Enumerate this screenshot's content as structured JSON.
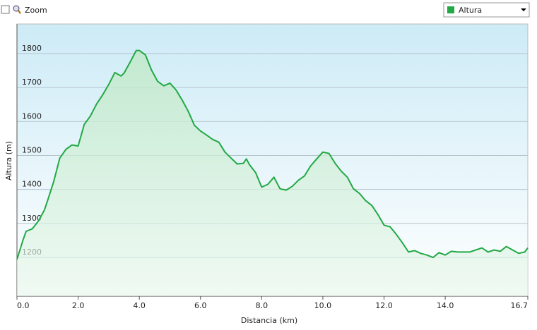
{
  "ui": {
    "zoom_label": "Zoom"
  },
  "chart_data": {
    "type": "area",
    "x_label": "Distancia  (km)",
    "y_label": "Altura (m)",
    "x": [
      0.0,
      0.2,
      0.3,
      0.5,
      0.7,
      0.9,
      1.0,
      1.2,
      1.4,
      1.6,
      1.8,
      2.0,
      2.2,
      2.4,
      2.6,
      2.8,
      3.0,
      3.2,
      3.4,
      3.5,
      3.7,
      3.9,
      4.0,
      4.2,
      4.4,
      4.6,
      4.8,
      5.0,
      5.2,
      5.4,
      5.6,
      5.8,
      6.0,
      6.2,
      6.4,
      6.6,
      6.8,
      7.0,
      7.2,
      7.4,
      7.5,
      7.6,
      7.8,
      8.0,
      8.2,
      8.4,
      8.6,
      8.8,
      9.0,
      9.2,
      9.4,
      9.6,
      9.8,
      10.0,
      10.2,
      10.4,
      10.6,
      10.8,
      11.0,
      11.2,
      11.4,
      11.6,
      11.8,
      12.0,
      12.2,
      12.4,
      12.6,
      12.8,
      13.0,
      13.2,
      13.4,
      13.6,
      13.8,
      14.0,
      14.2,
      14.4,
      14.6,
      14.8,
      15.0,
      15.2,
      15.4,
      15.6,
      15.8,
      16.0,
      16.2,
      16.4,
      16.6,
      16.7
    ],
    "series": [
      {
        "name": "Altura",
        "color": "#22a845",
        "values": [
          1194,
          1252,
          1277,
          1284,
          1307,
          1340,
          1367,
          1423,
          1492,
          1518,
          1531,
          1528,
          1591,
          1616,
          1651,
          1678,
          1709,
          1744,
          1734,
          1742,
          1775,
          1809,
          1809,
          1796,
          1751,
          1718,
          1705,
          1713,
          1693,
          1663,
          1630,
          1589,
          1572,
          1560,
          1547,
          1539,
          1510,
          1492,
          1475,
          1477,
          1490,
          1473,
          1450,
          1407,
          1415,
          1436,
          1402,
          1398,
          1409,
          1427,
          1440,
          1469,
          1490,
          1510,
          1506,
          1477,
          1454,
          1436,
          1402,
          1388,
          1367,
          1353,
          1326,
          1295,
          1290,
          1268,
          1243,
          1216,
          1220,
          1212,
          1207,
          1200,
          1214,
          1207,
          1218,
          1216,
          1216,
          1216,
          1222,
          1228,
          1216,
          1222,
          1218,
          1232,
          1222,
          1212,
          1216,
          1228
        ]
      }
    ],
    "xlim": [
      0,
      16.7
    ],
    "ylim": [
      1086,
      1887
    ],
    "xticks": [
      {
        "value": 0,
        "label": "0.0"
      },
      {
        "value": 2,
        "label": "2.0"
      },
      {
        "value": 4,
        "label": "4.0"
      },
      {
        "value": 6,
        "label": "6.0"
      },
      {
        "value": 8,
        "label": "8.0"
      },
      {
        "value": 10,
        "label": "10.0"
      },
      {
        "value": 12,
        "label": "12.0"
      },
      {
        "value": 14,
        "label": "14.0"
      },
      {
        "value": 16.7,
        "label": "16.7"
      }
    ],
    "yticks": [
      1200,
      1300,
      1400,
      1500,
      1600,
      1700,
      1800
    ],
    "grid": true
  }
}
